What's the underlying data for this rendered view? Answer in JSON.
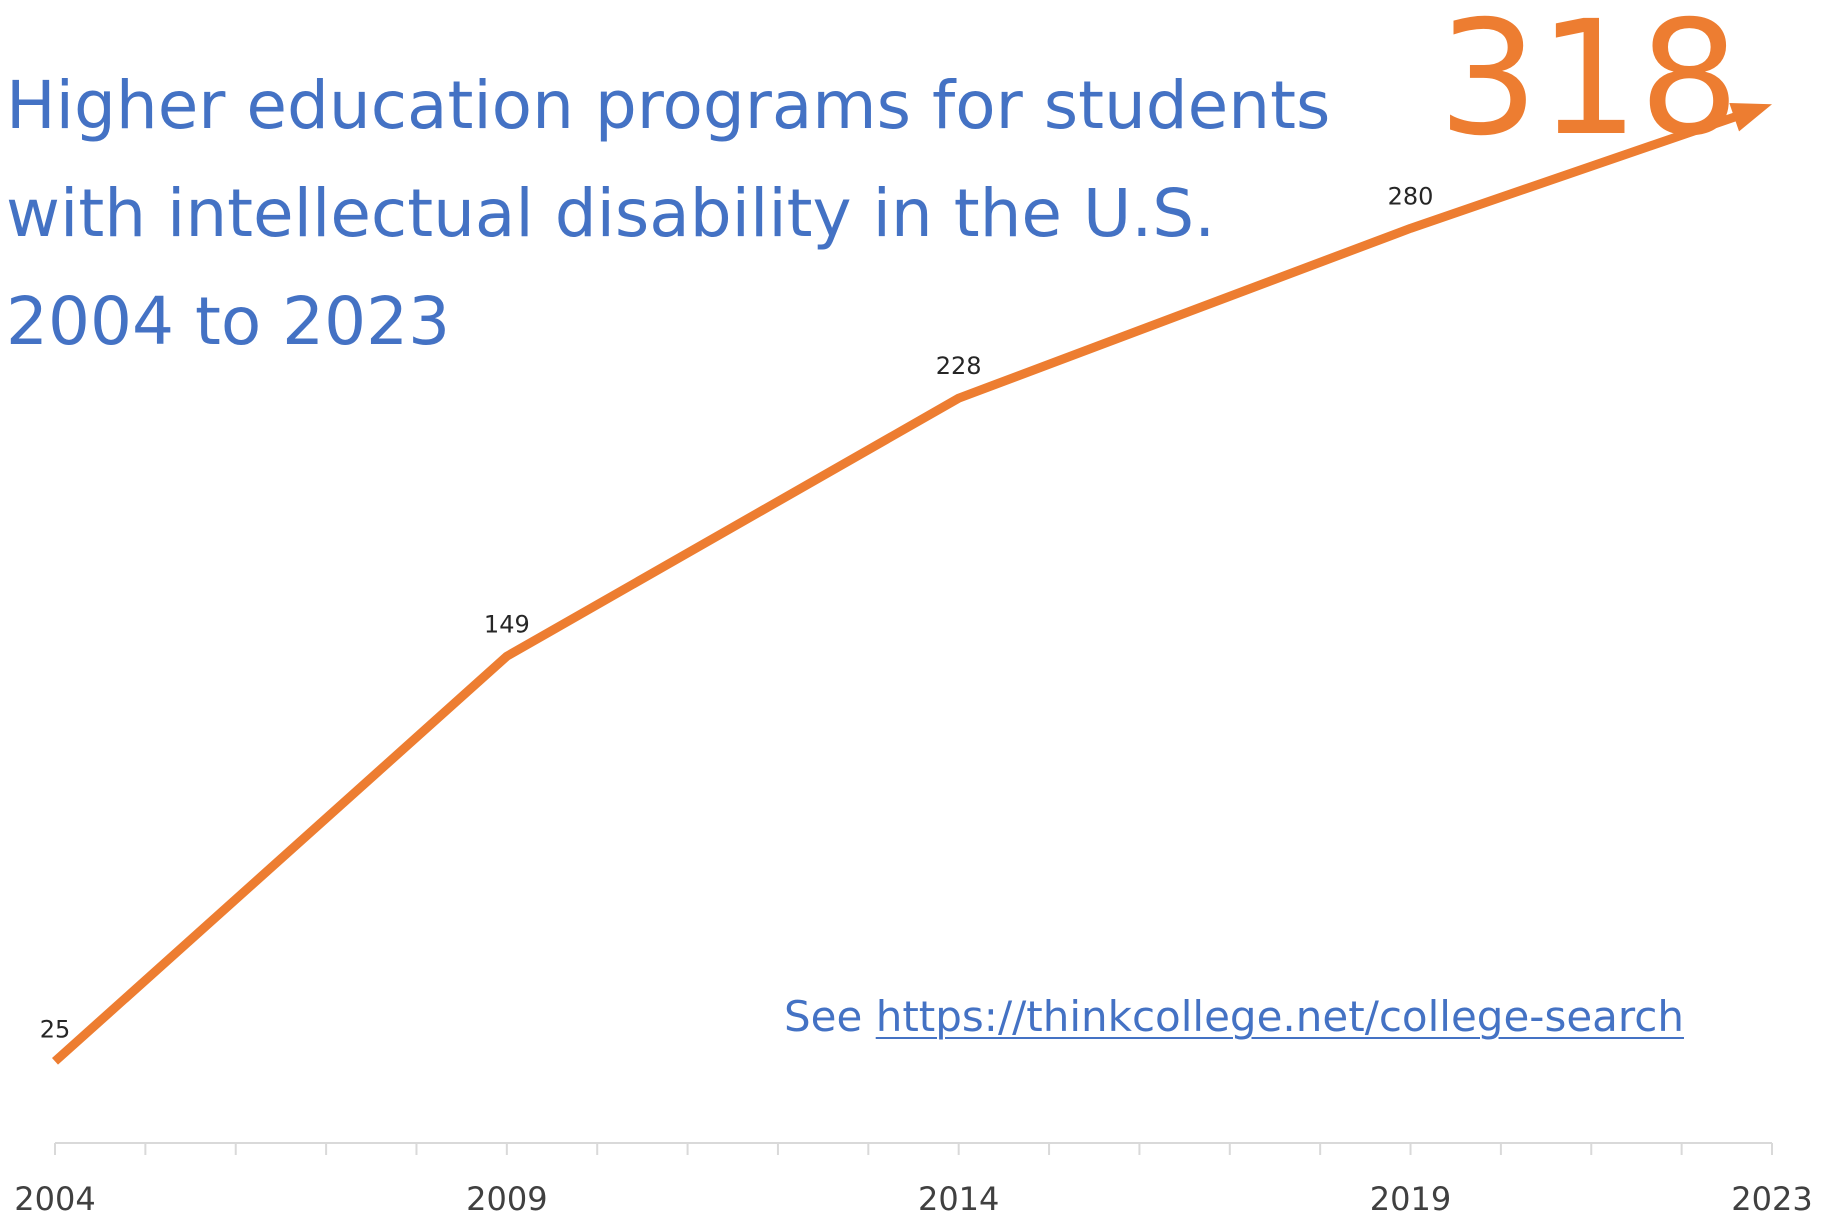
{
  "chart_data": {
    "type": "line",
    "title_lines": [
      "Higher education programs for students",
      "with intellectual disability in the U.S.",
      "2004 to 2023"
    ],
    "highlight_value": "318",
    "xlabel": "",
    "ylabel": "",
    "x_ticks": [
      "2004",
      "2009",
      "2014",
      "2019",
      "2023"
    ],
    "xlim": [
      2004,
      2023
    ],
    "ylim": [
      0,
      330
    ],
    "grid": false,
    "legend": "none",
    "series": [
      {
        "x": [
          2004,
          2009,
          2014,
          2019,
          2023
        ],
        "y": [
          25,
          149,
          228,
          280,
          318
        ],
        "data_labels": [
          "25",
          "149",
          "228",
          "280",
          ""
        ],
        "color": "#ed7d31",
        "end_marker": "arrow"
      }
    ]
  },
  "source": {
    "prefix": "See ",
    "link_text": "https://thinkcollege.net/college-search"
  },
  "colors": {
    "title": "#4472c4",
    "series": "#ed7d31",
    "axis": "#d9d9d9",
    "tick_text": "#404040"
  }
}
